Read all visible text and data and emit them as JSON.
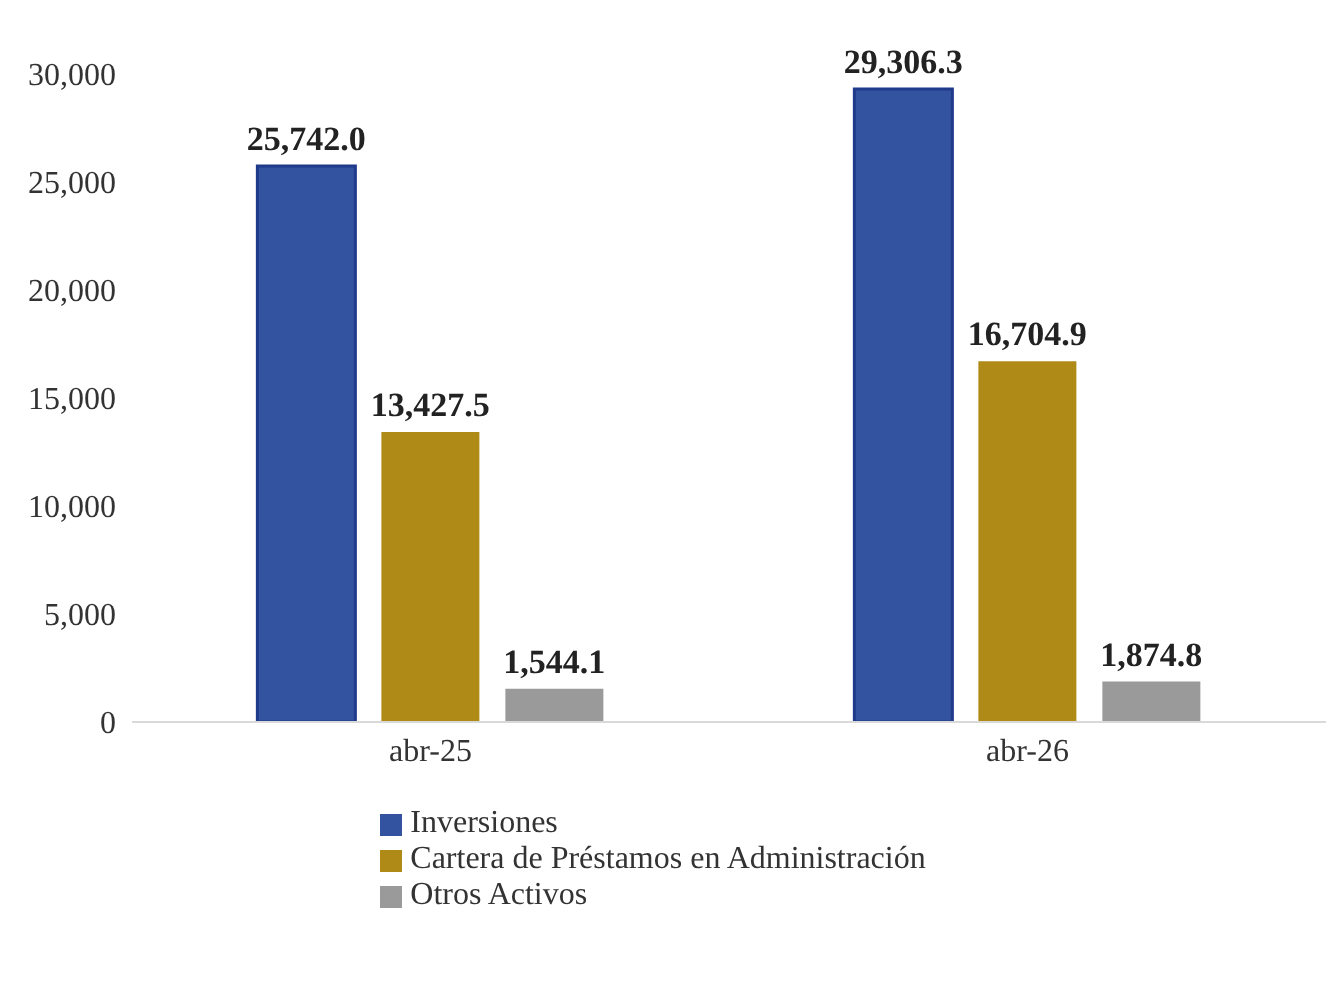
{
  "chart_data": {
    "type": "bar",
    "categories": [
      "abr-25",
      "abr-26"
    ],
    "series": [
      {
        "name": "Inversiones",
        "color": "#3353a0",
        "values": [
          25742.0,
          29306.3
        ],
        "value_labels": [
          "25,742.0",
          "29,306.3"
        ]
      },
      {
        "name": "Cartera de Préstamos en Administración",
        "color": "#b08a17",
        "values": [
          13427.5,
          16704.9
        ],
        "value_labels": [
          "13,427.5",
          "16,704.9"
        ]
      },
      {
        "name": "Otros Activos",
        "color": "#9a9a9a",
        "values": [
          1544.1,
          1874.8
        ],
        "value_labels": [
          "1,544.1",
          "1,874.8"
        ]
      }
    ],
    "ylim": [
      0,
      30000
    ],
    "yticks": [
      0,
      {
        "value": 5000,
        "label": "5,000"
      },
      {
        "value": 10000,
        "label": "10,000"
      },
      {
        "value": 15000,
        "label": "15,000"
      },
      {
        "value": 20000,
        "label": "20,000"
      },
      {
        "value": 25000,
        "label": "25,000"
      },
      {
        "value": 30000,
        "label": "30,000"
      }
    ],
    "legend": "bottom",
    "grid": false
  }
}
